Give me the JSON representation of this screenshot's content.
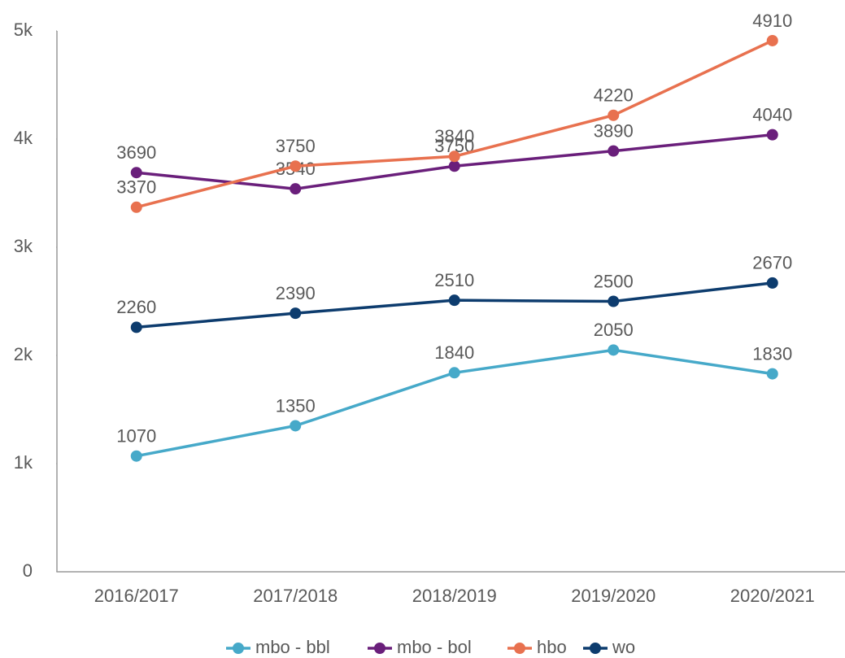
{
  "chart_data": {
    "type": "line",
    "categories": [
      "2016/2017",
      "2017/2018",
      "2018/2019",
      "2019/2020",
      "2020/2021"
    ],
    "series": [
      {
        "name": "mbo - bbl",
        "color": "#46a9c9",
        "values": [
          1070,
          1350,
          1840,
          2050,
          1830
        ]
      },
      {
        "name": "mbo - bol",
        "color": "#6a1f7b",
        "values": [
          3690,
          3540,
          3750,
          3890,
          4040
        ]
      },
      {
        "name": "hbo",
        "color": "#e8714f",
        "values": [
          3370,
          3750,
          3840,
          4220,
          4910
        ]
      },
      {
        "name": "wo",
        "color": "#0d3c6e",
        "values": [
          2260,
          2390,
          2510,
          2500,
          2670
        ]
      }
    ],
    "ylim": [
      0,
      5000
    ],
    "yticks": [
      0,
      {
        "value": 1000,
        "label": "1k"
      },
      {
        "value": 2000,
        "label": "2k"
      },
      {
        "value": 3000,
        "label": "3k"
      },
      {
        "value": 4000,
        "label": "4k"
      },
      {
        "value": 5000,
        "label": "5k"
      }
    ],
    "grid": false,
    "legend": "bottom"
  }
}
